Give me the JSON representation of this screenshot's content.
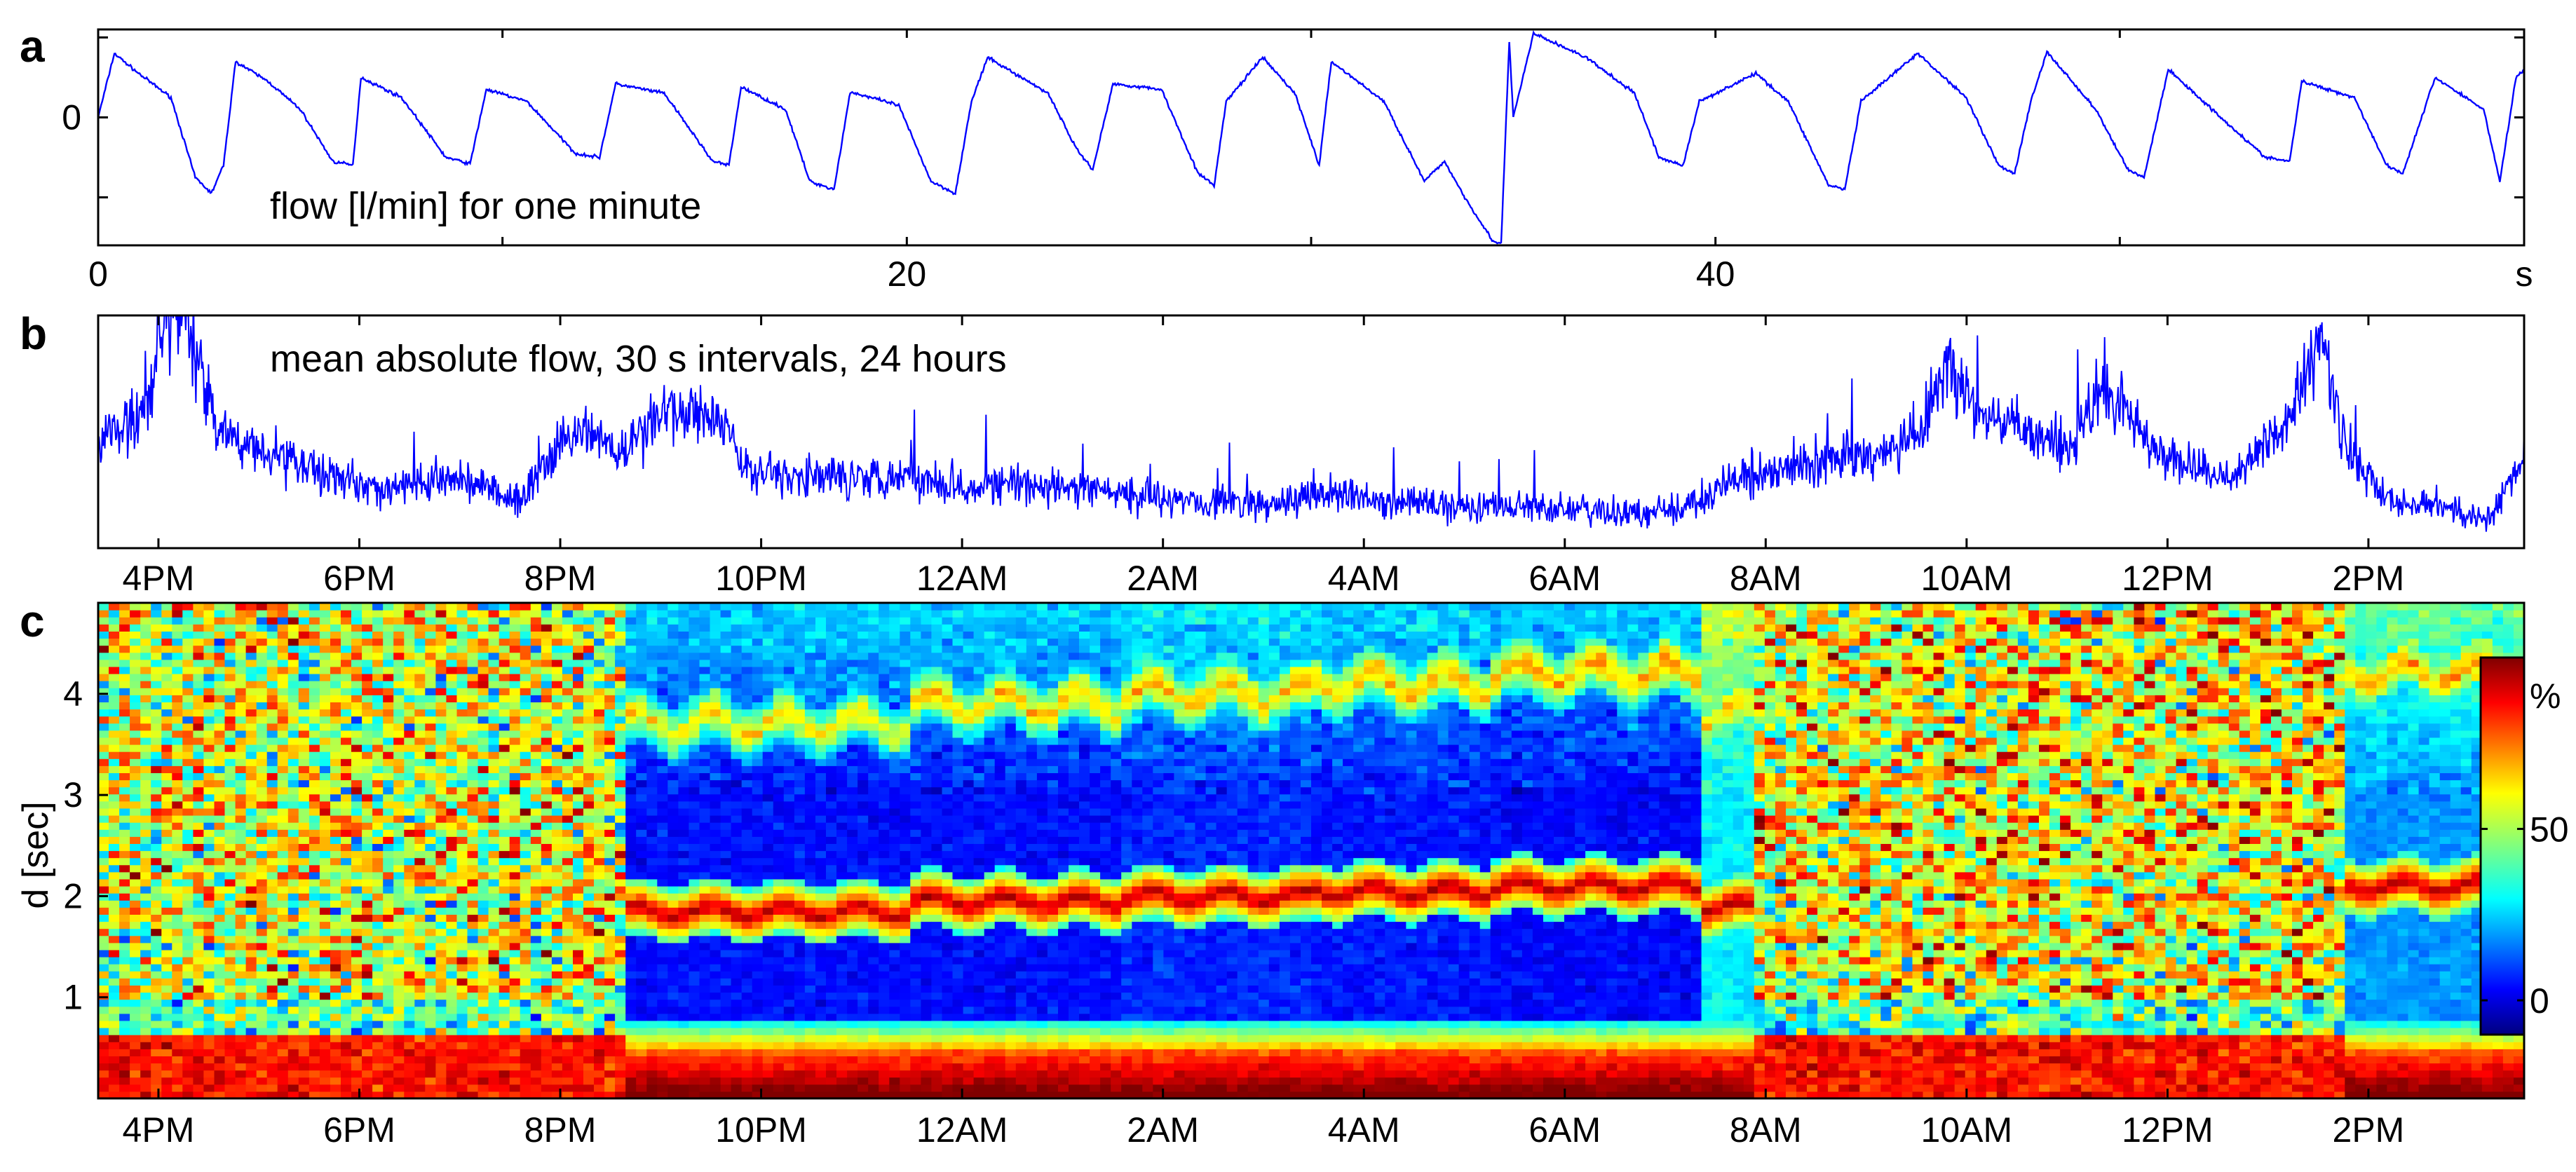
{
  "figure": {
    "panels": [
      {
        "id": "a",
        "letter": "a",
        "annotation": "flow [l/min] for one minute"
      },
      {
        "id": "b",
        "letter": "b",
        "annotation": "mean absolute flow, 30 s intervals, 24 hours"
      },
      {
        "id": "c",
        "letter": "c",
        "ylabel": "d [sec]"
      }
    ]
  },
  "chart_data": [
    {
      "type": "line",
      "panel": "a",
      "title": "",
      "annotation": "flow [l/min] for one minute",
      "xlabel": "s",
      "ylabel": "",
      "xlim": [
        0,
        60
      ],
      "ylim": [
        -1.6,
        1.1
      ],
      "x_ticks": [
        0,
        20,
        40
      ],
      "x_tick_labels": [
        "0",
        "20",
        "40"
      ],
      "x_unit_label": "s",
      "y_ticks": [
        0
      ],
      "y_tick_labels": [
        "0"
      ],
      "series_color": "#0000ff",
      "series": [
        {
          "name": "flow",
          "breath_peaks_s": [
            0.4,
            3.4,
            6.5,
            9.6,
            12.8,
            15.9,
            18.6,
            22.0,
            25.1,
            28.8,
            30.5,
            35.0,
            38.0,
            41.5,
            45.0,
            48.2,
            51.2,
            54.5,
            57.8,
            60.0
          ],
          "points": [
            [
              0,
              0.0
            ],
            [
              0.4,
              0.8
            ],
            [
              1.0,
              0.55
            ],
            [
              1.8,
              0.25
            ],
            [
              2.4,
              -0.75
            ],
            [
              2.8,
              -0.95
            ],
            [
              3.1,
              -0.6
            ],
            [
              3.4,
              0.7
            ],
            [
              4.2,
              0.45
            ],
            [
              5.0,
              0.1
            ],
            [
              5.8,
              -0.55
            ],
            [
              6.3,
              -0.6
            ],
            [
              6.5,
              0.5
            ],
            [
              7.5,
              0.25
            ],
            [
              8.6,
              -0.5
            ],
            [
              9.2,
              -0.58
            ],
            [
              9.6,
              0.35
            ],
            [
              10.6,
              0.2
            ],
            [
              11.8,
              -0.45
            ],
            [
              12.4,
              -0.5
            ],
            [
              12.8,
              0.42
            ],
            [
              14.0,
              0.3
            ],
            [
              15.2,
              -0.55
            ],
            [
              15.6,
              -0.6
            ],
            [
              15.9,
              0.38
            ],
            [
              17.0,
              0.1
            ],
            [
              17.6,
              -0.8
            ],
            [
              18.2,
              -0.9
            ],
            [
              18.6,
              0.32
            ],
            [
              19.8,
              0.15
            ],
            [
              20.6,
              -0.8
            ],
            [
              21.2,
              -0.95
            ],
            [
              21.6,
              0.2
            ],
            [
              22.0,
              0.75
            ],
            [
              23.5,
              0.3
            ],
            [
              24.2,
              -0.4
            ],
            [
              24.6,
              -0.65
            ],
            [
              25.1,
              0.42
            ],
            [
              26.3,
              0.35
            ],
            [
              27.2,
              -0.7
            ],
            [
              27.6,
              -0.85
            ],
            [
              27.9,
              0.2
            ],
            [
              28.8,
              0.75
            ],
            [
              29.6,
              0.3
            ],
            [
              30.2,
              -0.6
            ],
            [
              30.5,
              0.7
            ],
            [
              31.8,
              0.2
            ],
            [
              32.8,
              -0.8
            ],
            [
              33.3,
              -0.55
            ],
            [
              33.8,
              -1.0
            ],
            [
              34.5,
              -1.55
            ],
            [
              34.7,
              -1.58
            ],
            [
              34.9,
              0.95
            ],
            [
              35.0,
              0.0
            ],
            [
              35.5,
              1.05
            ],
            [
              36.8,
              0.75
            ],
            [
              38.0,
              0.3
            ],
            [
              38.6,
              -0.5
            ],
            [
              39.2,
              -0.6
            ],
            [
              39.6,
              0.2
            ],
            [
              41.0,
              0.55
            ],
            [
              41.8,
              0.2
            ],
            [
              42.8,
              -0.85
            ],
            [
              43.2,
              -0.9
            ],
            [
              43.6,
              0.2
            ],
            [
              45.0,
              0.8
            ],
            [
              46.2,
              0.25
            ],
            [
              47.0,
              -0.6
            ],
            [
              47.4,
              -0.7
            ],
            [
              47.8,
              0.2
            ],
            [
              48.2,
              0.82
            ],
            [
              49.4,
              0.1
            ],
            [
              50.2,
              -0.65
            ],
            [
              50.6,
              -0.75
            ],
            [
              51.2,
              0.6
            ],
            [
              52.5,
              0.0
            ],
            [
              53.6,
              -0.5
            ],
            [
              54.2,
              -0.55
            ],
            [
              54.5,
              0.45
            ],
            [
              55.8,
              0.25
            ],
            [
              56.6,
              -0.6
            ],
            [
              57.0,
              -0.7
            ],
            [
              57.8,
              0.5
            ],
            [
              59.0,
              0.1
            ],
            [
              59.4,
              -0.8
            ],
            [
              59.8,
              0.5
            ],
            [
              60.0,
              0.6
            ]
          ]
        }
      ]
    },
    {
      "type": "line",
      "panel": "b",
      "title": "",
      "annotation": "mean absolute flow, 30 s intervals, 24 hours",
      "xlabel": "",
      "ylabel": "",
      "x_unit": "hours since 3PM",
      "xlim": [
        0.4,
        24.55
      ],
      "ylim": [
        0,
        1
      ],
      "x_ticks": [
        1,
        3,
        5,
        7,
        9,
        11,
        13,
        15,
        17,
        19,
        21,
        23
      ],
      "x_tick_labels": [
        "4PM",
        "6PM",
        "8PM",
        "10PM",
        "12AM",
        "2AM",
        "4AM",
        "6AM",
        "8AM",
        "10AM",
        "12PM",
        "2PM"
      ],
      "series_color": "#0000ff",
      "series": [
        {
          "name": "mean absolute flow",
          "envelope_points": [
            [
              0.4,
              0.45
            ],
            [
              0.9,
              0.6
            ],
            [
              1.1,
              1.0
            ],
            [
              1.3,
              0.95
            ],
            [
              1.6,
              0.5
            ],
            [
              2.5,
              0.35
            ],
            [
              3.2,
              0.25
            ],
            [
              4.0,
              0.3
            ],
            [
              4.6,
              0.2
            ],
            [
              5.0,
              0.45
            ],
            [
              5.3,
              0.5
            ],
            [
              5.6,
              0.4
            ],
            [
              6.0,
              0.58
            ],
            [
              6.4,
              0.6
            ],
            [
              6.6,
              0.55
            ],
            [
              6.8,
              0.35
            ],
            [
              7.5,
              0.3
            ],
            [
              8.3,
              0.32
            ],
            [
              9.0,
              0.28
            ],
            [
              10.0,
              0.26
            ],
            [
              11.0,
              0.22
            ],
            [
              12.0,
              0.18
            ],
            [
              12.7,
              0.24
            ],
            [
              13.2,
              0.2
            ],
            [
              14.0,
              0.18
            ],
            [
              15.0,
              0.17
            ],
            [
              15.8,
              0.14
            ],
            [
              16.3,
              0.2
            ],
            [
              16.8,
              0.3
            ],
            [
              17.3,
              0.35
            ],
            [
              18.0,
              0.4
            ],
            [
              18.5,
              0.45
            ],
            [
              18.8,
              0.8
            ],
            [
              19.1,
              0.6
            ],
            [
              19.5,
              0.5
            ],
            [
              20.0,
              0.45
            ],
            [
              20.4,
              0.7
            ],
            [
              20.8,
              0.45
            ],
            [
              21.2,
              0.35
            ],
            [
              21.6,
              0.3
            ],
            [
              22.2,
              0.55
            ],
            [
              22.5,
              0.9
            ],
            [
              22.8,
              0.4
            ],
            [
              23.2,
              0.2
            ],
            [
              23.7,
              0.18
            ],
            [
              24.2,
              0.12
            ],
            [
              24.55,
              0.4
            ]
          ],
          "note": "noisy trace; values approximate the visible envelope, y axis has no tick labels"
        }
      ]
    },
    {
      "type": "heatmap",
      "panel": "c",
      "title": "",
      "xlabel": "",
      "ylabel": "d [sec]",
      "x_unit": "hours since 3PM",
      "xlim": [
        0.4,
        24.55
      ],
      "ylim": [
        0,
        4.9
      ],
      "x_ticks": [
        1,
        3,
        5,
        7,
        9,
        11,
        13,
        15,
        17,
        19,
        21,
        23
      ],
      "x_tick_labels": [
        "4PM",
        "6PM",
        "8PM",
        "10PM",
        "12AM",
        "2AM",
        "4AM",
        "6AM",
        "8AM",
        "10AM",
        "12PM",
        "2PM"
      ],
      "y_ticks": [
        1,
        2,
        3,
        4
      ],
      "y_tick_labels": [
        "1",
        "2",
        "3",
        "4"
      ],
      "colorbar": {
        "colormap": "jet",
        "range": [
          -10,
          100
        ],
        "ticks": [
          0,
          50
        ],
        "tick_labels": [
          "0",
          "50"
        ],
        "unit_label": "%"
      },
      "segments": [
        {
          "from_h": 0.4,
          "to_h": 5.6,
          "pattern": "noisy",
          "base_value": 55,
          "band_d": null
        },
        {
          "from_h": 5.6,
          "to_h": 8.5,
          "pattern": "banded",
          "base_value": 5,
          "band_d": 1.85
        },
        {
          "from_h": 8.5,
          "to_h": 10.6,
          "pattern": "banded",
          "base_value": 5,
          "band_d": 1.95
        },
        {
          "from_h": 10.6,
          "to_h": 12.5,
          "pattern": "banded",
          "base_value": 8,
          "band_d": 2.0
        },
        {
          "from_h": 12.5,
          "to_h": 14.3,
          "pattern": "banded",
          "base_value": 6,
          "band_d": 2.05
        },
        {
          "from_h": 14.3,
          "to_h": 16.4,
          "pattern": "banded",
          "base_value": 4,
          "band_d": 2.1
        },
        {
          "from_h": 16.4,
          "to_h": 16.9,
          "pattern": "transition",
          "base_value": 30,
          "band_d": 1.9
        },
        {
          "from_h": 16.9,
          "to_h": 22.8,
          "pattern": "noisy",
          "base_value": 58,
          "band_d": null
        },
        {
          "from_h": 22.8,
          "to_h": 24.55,
          "pattern": "banded",
          "base_value": 20,
          "band_d": 2.1
        }
      ]
    }
  ]
}
